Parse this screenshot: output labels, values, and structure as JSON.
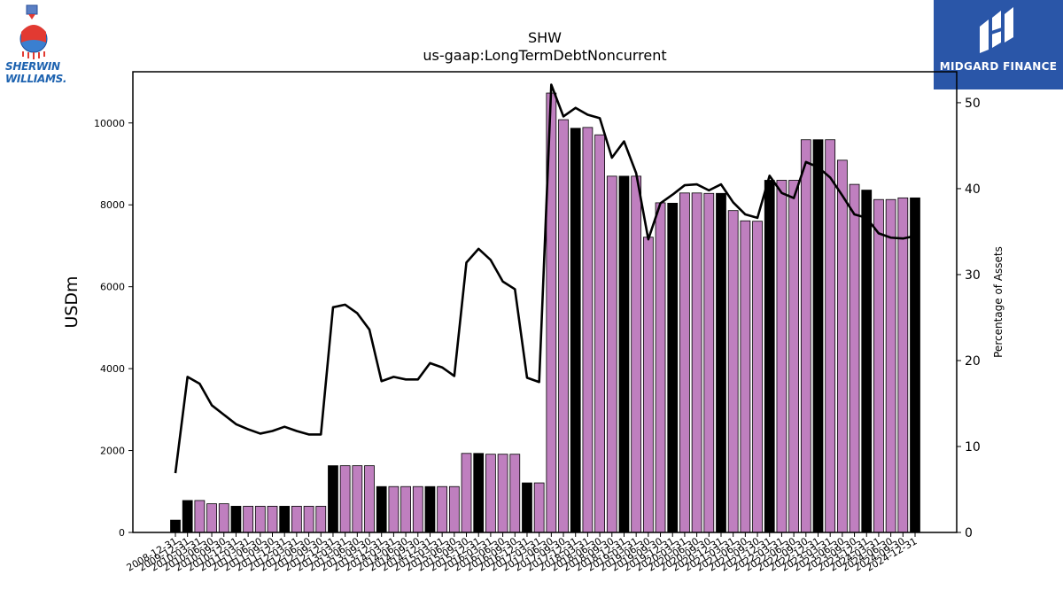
{
  "brand_left": {
    "line1": "SHERWIN",
    "line2": "WILLIAMS."
  },
  "brand_right": {
    "name": "MIDGARD FINANCE"
  },
  "colors": {
    "bar_default": "#bf7fbf",
    "bar_highlight": "#000000",
    "line": "#000000"
  },
  "chart_data": {
    "type": "bar",
    "title": "SHW",
    "subtitle": "us-gaap:LongTermDebtNoncurrent",
    "ylabel": "USDm",
    "y2label": "Percentage of Assets",
    "ylim": [
      0,
      11250
    ],
    "y2lim": [
      0,
      53.6
    ],
    "yticks": [
      0,
      2000,
      4000,
      6000,
      8000,
      10000
    ],
    "y2ticks": [
      0,
      10,
      20,
      30,
      40,
      50
    ],
    "grid": false,
    "categories": [
      "2008-12-31",
      "2009-12-31",
      "2010-03-31",
      "2010-06-30",
      "2010-09-30",
      "2010-12-31",
      "2011-03-31",
      "2011-06-30",
      "2011-09-30",
      "2011-12-31",
      "2012-03-31",
      "2012-06-30",
      "2012-09-30",
      "2012-12-31",
      "2013-03-31",
      "2013-06-30",
      "2013-09-30",
      "2013-12-31",
      "2014-03-31",
      "2014-06-30",
      "2014-09-30",
      "2014-12-31",
      "2015-03-31",
      "2015-06-30",
      "2015-09-30",
      "2015-12-31",
      "2016-03-31",
      "2016-06-30",
      "2016-09-30",
      "2016-12-31",
      "2017-03-31",
      "2017-06-30",
      "2017-09-30",
      "2017-12-31",
      "2018-03-31",
      "2018-06-30",
      "2018-09-30",
      "2018-12-31",
      "2019-03-31",
      "2019-06-30",
      "2019-09-30",
      "2019-12-31",
      "2020-03-31",
      "2020-06-30",
      "2020-09-30",
      "2020-12-31",
      "2021-03-31",
      "2021-06-30",
      "2021-09-30",
      "2021-12-31",
      "2022-03-31",
      "2022-06-30",
      "2022-09-30",
      "2022-12-31",
      "2023-03-31",
      "2023-06-30",
      "2023-09-30",
      "2023-12-31",
      "2024-03-31",
      "2024-06-30",
      "2024-09-30",
      "2024-12-31"
    ],
    "series": [
      {
        "kind": "bar",
        "values": [
          300,
          780,
          780,
          700,
          700,
          640,
          640,
          640,
          640,
          640,
          640,
          640,
          640,
          1630,
          1630,
          1630,
          1630,
          1120,
          1120,
          1120,
          1120,
          1120,
          1120,
          1120,
          1930,
          1930,
          1910,
          1910,
          1910,
          1210,
          1210,
          10730,
          10080,
          9870,
          9890,
          9710,
          8700,
          8700,
          8700,
          7210,
          8050,
          8040,
          8290,
          8290,
          8280,
          8280,
          7860,
          7610,
          7600,
          8600,
          8600,
          8600,
          9590,
          9590,
          9590,
          9090,
          8500,
          8360,
          8130,
          8130,
          8170,
          8170
        ],
        "highlight_categories": [
          "2008-12-31",
          "2009-12-31",
          "2010-12-31",
          "2011-12-31",
          "2012-12-31",
          "2013-12-31",
          "2014-12-31",
          "2015-12-31",
          "2016-12-31",
          "2017-12-31",
          "2018-12-31",
          "2019-12-31",
          "2020-12-31",
          "2021-12-31",
          "2022-12-31",
          "2023-12-31",
          "2024-12-31"
        ]
      },
      {
        "kind": "line",
        "axis": "right",
        "values": [
          6.9,
          18.1,
          17.3,
          14.8,
          13.7,
          12.6,
          12.0,
          11.5,
          11.8,
          12.3,
          11.8,
          11.4,
          11.4,
          26.2,
          26.5,
          25.5,
          23.6,
          17.6,
          18.1,
          17.8,
          17.8,
          19.7,
          19.2,
          18.2,
          31.4,
          33.0,
          31.7,
          29.2,
          28.3,
          18.0,
          17.5,
          52.1,
          48.4,
          49.4,
          48.6,
          48.2,
          43.6,
          45.5,
          41.8,
          34.1,
          38.3,
          39.3,
          40.4,
          40.5,
          39.8,
          40.5,
          38.4,
          37.0,
          36.6,
          41.5,
          39.5,
          38.9,
          43.1,
          42.5,
          41.3,
          39.2,
          37.0,
          36.6,
          34.8,
          34.3,
          34.2,
          34.5
        ]
      }
    ]
  }
}
